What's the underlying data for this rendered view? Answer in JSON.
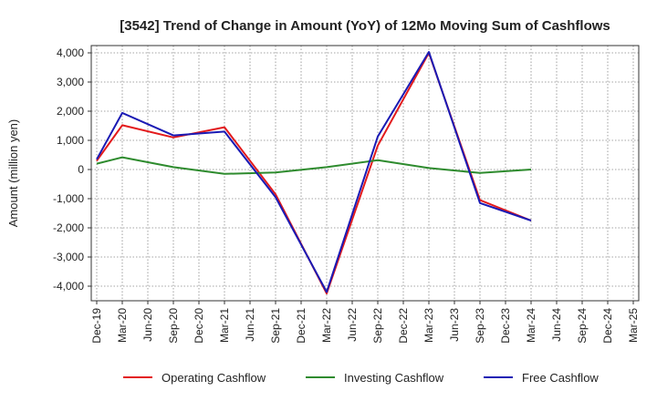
{
  "chart_data": {
    "type": "line",
    "title": "[3542]  Trend of Change in Amount (YoY) of 12Mo Moving Sum of Cashflows",
    "xlabel": "",
    "ylabel": "Amount (million yen)",
    "ylim": [
      -4500,
      4250
    ],
    "yticks": [
      4000,
      3000,
      2000,
      1000,
      0,
      -1000,
      -2000,
      -3000,
      -4000
    ],
    "ytick_labels": [
      "4,000",
      "3,000",
      "2,000",
      "1,000",
      "0",
      "-1,000",
      "-2,000",
      "-3,000",
      "-4,000"
    ],
    "categories": [
      "Dec-19",
      "Mar-20",
      "Jun-20",
      "Sep-20",
      "Dec-20",
      "Mar-21",
      "Jun-21",
      "Sep-21",
      "Dec-21",
      "Mar-22",
      "Jun-22",
      "Sep-22",
      "Dec-22",
      "Mar-23",
      "Jun-23",
      "Sep-23",
      "Dec-23",
      "Mar-24",
      "Jun-24",
      "Sep-24",
      "Dec-24",
      "Mar-25"
    ],
    "grid": true,
    "legend_position": "bottom",
    "series": [
      {
        "name": "Operating Cashflow",
        "color": "#e31a1c",
        "values": [
          300,
          1520,
          null,
          1100,
          null,
          1450,
          null,
          -850,
          null,
          -4250,
          null,
          820,
          null,
          4000,
          null,
          -1050,
          null,
          -1750,
          null,
          null,
          null,
          null
        ]
      },
      {
        "name": "Investing Cashflow",
        "color": "#2e8b2e",
        "values": [
          200,
          420,
          null,
          80,
          null,
          -150,
          null,
          -100,
          null,
          80,
          null,
          320,
          null,
          50,
          null,
          -120,
          null,
          0,
          null,
          null,
          null,
          null
        ]
      },
      {
        "name": "Free Cashflow",
        "color": "#1a1ab4",
        "values": [
          350,
          1940,
          null,
          1170,
          null,
          1300,
          null,
          -950,
          null,
          -4200,
          null,
          1130,
          null,
          4030,
          null,
          -1150,
          null,
          -1750,
          null,
          null,
          null,
          null
        ]
      }
    ]
  }
}
